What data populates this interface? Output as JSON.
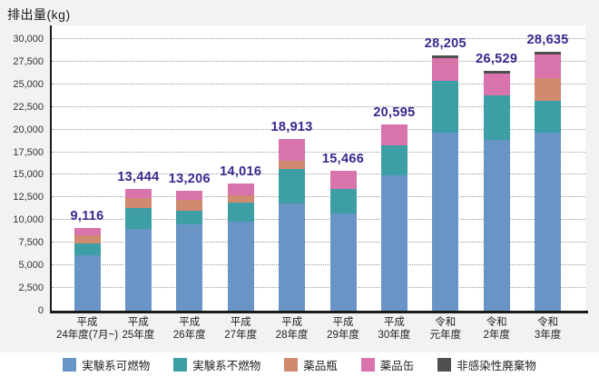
{
  "title": "排出量(kg)",
  "colors": {
    "page_bg": "#f2f2f1",
    "plot_bg": "#ffffff",
    "axis": "#1a1a1a",
    "grid": "#999999",
    "tick_label": "#333333",
    "value_label": "#352a8e",
    "legend_bg": "#ffffff"
  },
  "chart_data": {
    "type": "bar",
    "stacked": true,
    "title": "排出量(kg)",
    "ylabel": "排出量(kg)",
    "ylim": [
      0,
      31500
    ],
    "yticks": [
      0,
      2500,
      5000,
      7500,
      10000,
      12500,
      15000,
      17500,
      20000,
      22500,
      25000,
      27500,
      30000
    ],
    "ytick_labels": [
      "0",
      "2,500",
      "5,000",
      "7,500",
      "10,000",
      "12,500",
      "15,000",
      "17,500",
      "20,000",
      "22,500",
      "25,000",
      "27,500",
      "30,000"
    ],
    "grid": "horizontal-dotted",
    "legend_position": "bottom",
    "categories": [
      {
        "line1": "平成",
        "line2": "24年度(7月~)"
      },
      {
        "line1": "平成",
        "line2": "25年度"
      },
      {
        "line1": "平成",
        "line2": "26年度"
      },
      {
        "line1": "平成",
        "line2": "27年度"
      },
      {
        "line1": "平成",
        "line2": "28年度"
      },
      {
        "line1": "平成",
        "line2": "29年度"
      },
      {
        "line1": "平成",
        "line2": "30年度"
      },
      {
        "line1": "令和",
        "line2": "元年度"
      },
      {
        "line1": "令和",
        "line2": "2年度"
      },
      {
        "line1": "令和",
        "line2": "3年度"
      }
    ],
    "series": [
      {
        "name": "実験系可燃物",
        "color": "#6994c6",
        "values": [
          6120,
          9050,
          9580,
          9786,
          11833,
          10726,
          14945,
          19700,
          18849,
          19620
        ]
      },
      {
        "name": "実験系不燃物",
        "color": "#3d9ea6",
        "values": [
          1300,
          2250,
          1430,
          2180,
          3780,
          2740,
          3280,
          5700,
          4880,
          3510
        ]
      },
      {
        "name": "薬品瓶",
        "color": "#d08a70",
        "values": [
          900,
          1150,
          1200,
          730,
          900,
          0,
          0,
          0,
          0,
          2510
        ]
      },
      {
        "name": "薬品缶",
        "color": "#d873ac",
        "values": [
          796,
          994,
          996,
          1320,
          2400,
          2000,
          2370,
          2500,
          2470,
          2610
        ]
      },
      {
        "name": "非感染性廃棄物",
        "color": "#4f4f4f",
        "values": [
          0,
          0,
          0,
          0,
          0,
          0,
          0,
          305,
          330,
          385
        ]
      }
    ],
    "totals": [
      9116,
      13444,
      13206,
      14016,
      18913,
      15466,
      20595,
      28205,
      26529,
      28635
    ],
    "total_labels": [
      "9,116",
      "13,444",
      "13,206",
      "14,016",
      "18,913",
      "15,466",
      "20,595",
      "28,205",
      "26,529",
      "28,635"
    ]
  }
}
